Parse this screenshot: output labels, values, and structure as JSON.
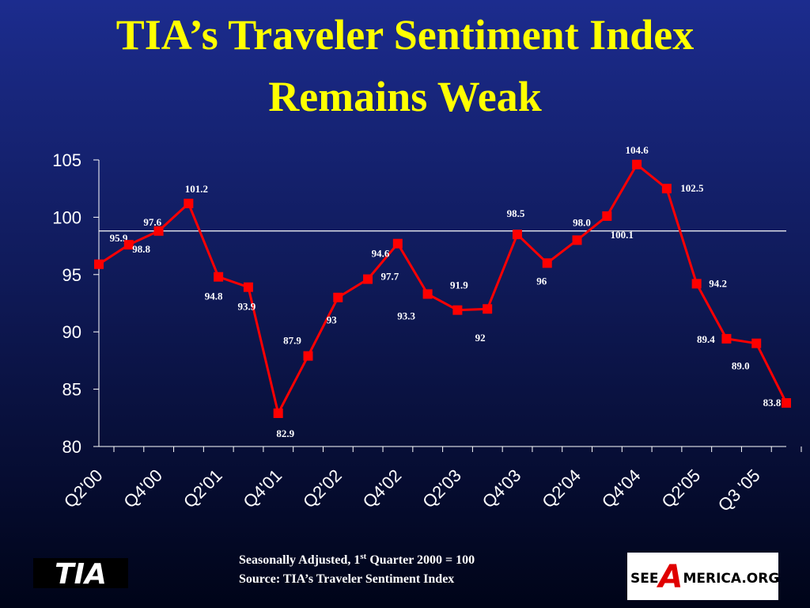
{
  "chart_data": {
    "type": "line",
    "title": [
      "TIA’s Traveler Sentiment Index",
      "Remains Weak"
    ],
    "categories": [
      "Q2'00",
      null,
      "Q4'00",
      null,
      "Q2'01",
      null,
      "Q4'01",
      null,
      "Q2'02",
      null,
      "Q4'02",
      null,
      "Q2'03",
      null,
      "Q4'03",
      null,
      "Q2'04",
      null,
      "Q4'04",
      null,
      "Q2'05",
      null,
      "Q3 '05",
      null
    ],
    "series": [
      {
        "color": "#ff0000",
        "values": [
          95.9,
          97.6,
          98.8,
          101.2,
          94.8,
          93.9,
          82.9,
          87.9,
          93,
          94.6,
          97.7,
          93.3,
          91.9,
          92,
          98.5,
          96,
          98.0,
          100.1,
          104.6,
          102.5,
          94.2,
          89.4,
          89.0,
          83.8
        ],
        "value_labels": [
          "95.9",
          "97.6",
          "98.8",
          "101.2",
          "94.8",
          "93.9",
          "82.9",
          "87.9",
          "93",
          "94.6",
          "97.7",
          "93.3",
          "91.9",
          "92",
          "98.5",
          "96",
          "98.0",
          "100.1",
          "104.6",
          "102.5",
          "94.2",
          "89.4",
          "89.0",
          "83.8"
        ]
      }
    ],
    "reference_line": 98.8,
    "ylim": [
      80,
      105
    ],
    "yticks": [
      80,
      85,
      90,
      95,
      100,
      105
    ]
  },
  "footer": {
    "note": [
      "Seasonally Adjusted, 1",
      "st",
      " Quarter 2000 = 100"
    ],
    "source": "Source:  TIA’s Traveler Sentiment Index",
    "logo_left": "TIA",
    "logo_right": [
      "SEE",
      "A",
      "MERICA.ORG"
    ]
  }
}
